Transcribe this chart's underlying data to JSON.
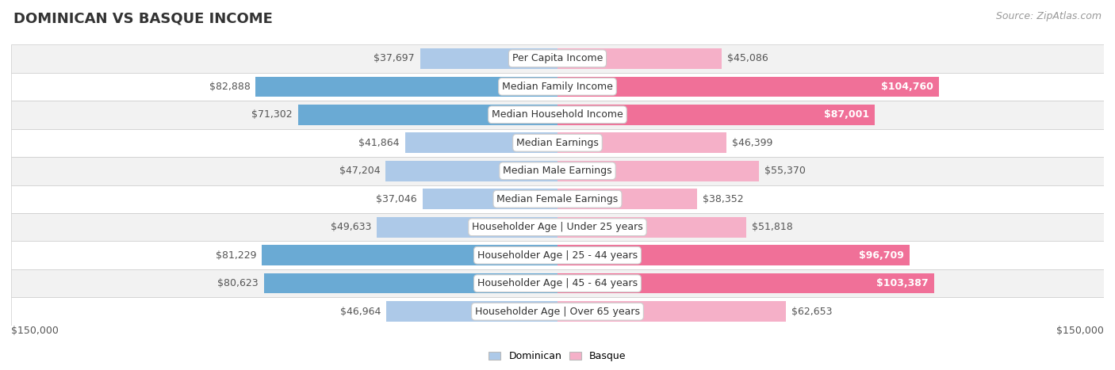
{
  "title": "DOMINICAN VS BASQUE INCOME",
  "source": "Source: ZipAtlas.com",
  "categories": [
    "Per Capita Income",
    "Median Family Income",
    "Median Household Income",
    "Median Earnings",
    "Median Male Earnings",
    "Median Female Earnings",
    "Householder Age | Under 25 years",
    "Householder Age | 25 - 44 years",
    "Householder Age | 45 - 64 years",
    "Householder Age | Over 65 years"
  ],
  "dominican_values": [
    37697,
    82888,
    71302,
    41864,
    47204,
    37046,
    49633,
    81229,
    80623,
    46964
  ],
  "basque_values": [
    45086,
    104760,
    87001,
    46399,
    55370,
    38352,
    51818,
    96709,
    103387,
    62653
  ],
  "dominican_labels": [
    "$37,697",
    "$82,888",
    "$71,302",
    "$41,864",
    "$47,204",
    "$37,046",
    "$49,633",
    "$81,229",
    "$80,623",
    "$46,964"
  ],
  "basque_labels": [
    "$45,086",
    "$104,760",
    "$87,001",
    "$46,399",
    "$55,370",
    "$38,352",
    "$51,818",
    "$96,709",
    "$103,387",
    "$62,653"
  ],
  "dominican_color_light": "#adc9e8",
  "dominican_color_dark": "#6aaad4",
  "basque_color_light": "#f5b0c8",
  "basque_color_dark": "#f07098",
  "dom_dark_threshold": 65000,
  "bas_dark_threshold": 80000,
  "xlim": 150000,
  "bar_height": 0.72,
  "row_bg_even": "#f2f2f2",
  "row_bg_odd": "#ffffff",
  "row_border_color": "#cccccc",
  "axis_label_left": "$150,000",
  "axis_label_right": "$150,000",
  "title_fontsize": 13,
  "source_fontsize": 9,
  "label_fontsize": 9,
  "category_fontsize": 9,
  "value_fontsize": 9,
  "legend_label_dominican": "Dominican",
  "legend_label_basque": "Basque"
}
